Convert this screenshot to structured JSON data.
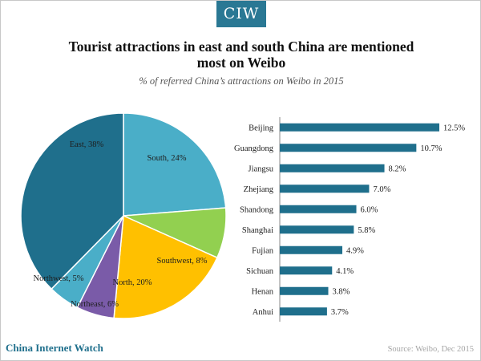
{
  "header": {
    "logo_text": "CIW",
    "title_line1": "Tourist attractions in east and south China are mentioned",
    "title_line2": "most on Weibo",
    "subtitle": "% of referred China’s attractions on Weibo in 2015"
  },
  "footer": {
    "brand": "China Internet Watch",
    "source": "Source: Weibo, Dec 2015"
  },
  "colors": {
    "logo_bg": "#2a7894",
    "bar": "#1f6f8c"
  },
  "chart_data": [
    {
      "type": "pie",
      "title": "",
      "slices": [
        {
          "name": "South",
          "value": 24,
          "label": "South, 24%",
          "color": "#4aaec8"
        },
        {
          "name": "Southwest",
          "value": 8,
          "label": "Southwest, 8%",
          "color": "#92d050"
        },
        {
          "name": "North",
          "value": 20,
          "label": "North, 20%",
          "color": "#ffc000"
        },
        {
          "name": "Northeast",
          "value": 6,
          "label": "Northeast, 6%",
          "color": "#7a5ba8"
        },
        {
          "name": "Northwest",
          "value": 5,
          "label": "Northwest, 5%",
          "color": "#4aaec8"
        },
        {
          "name": "East",
          "value": 38,
          "label": "East, 38%",
          "color": "#1f6f8c"
        }
      ]
    },
    {
      "type": "bar",
      "orientation": "horizontal",
      "categories": [
        "Beijing",
        "Guangdong",
        "Jiangsu",
        "Zhejiang",
        "Shandong",
        "Shanghai",
        "Fujian",
        "Sichuan",
        "Henan",
        "Anhui"
      ],
      "values": [
        12.5,
        10.7,
        8.2,
        7.0,
        6.0,
        5.8,
        4.9,
        4.1,
        3.8,
        3.7
      ],
      "value_labels": [
        "12.5%",
        "10.7%",
        "8.2%",
        "7.0%",
        "6.0%",
        "5.8%",
        "4.9%",
        "4.1%",
        "3.8%",
        "3.7%"
      ],
      "xlim": [
        0,
        12.5
      ],
      "grid": false
    }
  ]
}
